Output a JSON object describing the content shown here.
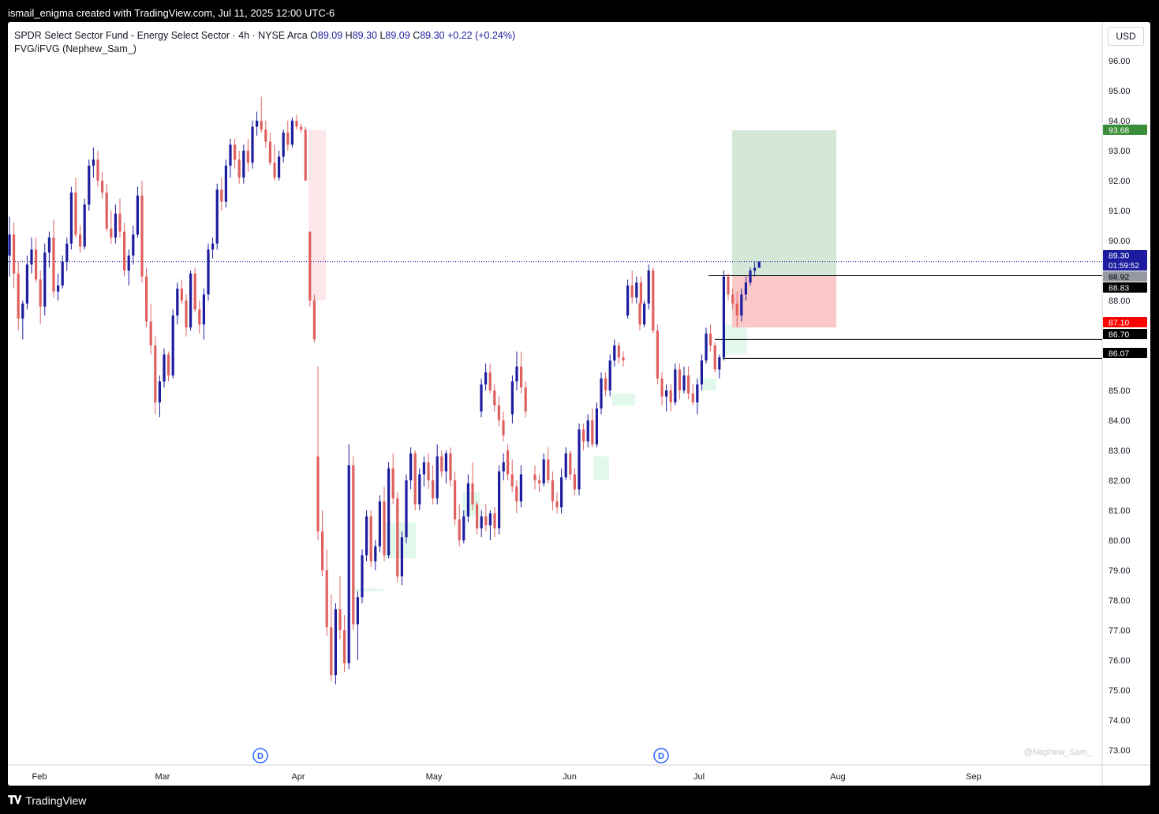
{
  "header": {
    "created_text": "ismail_enigma created with TradingView.com, Jul 11, 2025 12:00 UTC-6"
  },
  "legend": {
    "symbol": "SPDR Select Sector Fund - Energy Select Sector · 4h · NYSE Arca",
    "open_label": "O",
    "open": "89.09",
    "high_label": "H",
    "high": "89.30",
    "low_label": "L",
    "low": "89.09",
    "close_label": "C",
    "close": "89.30",
    "change": "+0.22 (+0.24%)",
    "indicator": "FVG/iFVG (Nephew_Sam_)"
  },
  "currency": "USD",
  "watermark": "@Nephew_Sam_",
  "footer": {
    "brand": "TradingView"
  },
  "colors": {
    "up": "#1c1c9e",
    "down": "#e06060",
    "target_zone": "#d4e8d8",
    "stop_zone": "#fbc8c8",
    "fvg_bull": "#def7e8",
    "fvg_bear": "#fde3e8",
    "price_tag_current": "#1c1c9e",
    "price_tag_target": "#3a8e3a",
    "price_tag_stop": "#ff0000"
  },
  "chart_data": {
    "type": "candlestick",
    "ylim": [
      72.5,
      96.8
    ],
    "y_ticks": [
      "96.00",
      "95.00",
      "94.00",
      "93.00",
      "92.00",
      "91.00",
      "90.00",
      "88.00",
      "85.00",
      "84.00",
      "83.00",
      "82.00",
      "81.00",
      "80.00",
      "79.00",
      "78.00",
      "77.00",
      "76.00",
      "75.00",
      "74.00",
      "73.00"
    ],
    "x_ticks": [
      "Feb",
      "Mar",
      "Apr",
      "May",
      "Jun",
      "Jul",
      "Aug",
      "Sep"
    ],
    "dividend_markers": [
      {
        "label": "D",
        "month": "Apr"
      },
      {
        "label": "D",
        "month": "Jun"
      }
    ],
    "price_tags": [
      {
        "label": "93.68",
        "role": "target"
      },
      {
        "label": "89.30",
        "sub": "01:59:52",
        "role": "current"
      },
      {
        "label": "88.92",
        "role": "gray"
      },
      {
        "label": "88.83",
        "role": "dark"
      },
      {
        "label": "87.10",
        "role": "stop"
      },
      {
        "label": "86.70",
        "role": "dark"
      },
      {
        "label": "86.07",
        "role": "dark"
      }
    ],
    "horizontal_lines": [
      88.83,
      86.7,
      86.07
    ],
    "position": {
      "entry": 88.83,
      "target": 93.68,
      "stop": 87.1
    },
    "current_price": 89.3,
    "candles": [
      [
        89.5,
        90.8,
        88.8,
        90.2
      ],
      [
        90.2,
        90.6,
        88.4,
        88.9
      ],
      [
        88.9,
        89.3,
        87.0,
        87.4
      ],
      [
        87.4,
        88.0,
        86.7,
        87.9
      ],
      [
        87.9,
        89.5,
        87.7,
        89.2
      ],
      [
        89.2,
        90.1,
        88.9,
        89.7
      ],
      [
        89.7,
        90.1,
        88.6,
        88.7
      ],
      [
        88.7,
        89.0,
        87.2,
        87.8
      ],
      [
        87.8,
        89.9,
        87.5,
        89.6
      ],
      [
        89.6,
        90.3,
        89.1,
        90.1
      ],
      [
        90.1,
        90.7,
        88.1,
        88.3
      ],
      [
        88.3,
        88.9,
        88.0,
        88.5
      ],
      [
        88.5,
        89.5,
        88.4,
        89.3
      ],
      [
        89.3,
        90.1,
        89.0,
        89.9
      ],
      [
        89.9,
        91.8,
        89.7,
        91.6
      ],
      [
        91.6,
        92.1,
        90.1,
        90.2
      ],
      [
        90.2,
        90.5,
        89.6,
        89.8
      ],
      [
        89.8,
        91.4,
        89.7,
        91.2
      ],
      [
        91.2,
        92.7,
        91.0,
        92.5
      ],
      [
        92.5,
        93.1,
        92.1,
        92.7
      ],
      [
        92.7,
        93.0,
        91.8,
        92.0
      ],
      [
        92.0,
        92.3,
        91.4,
        91.6
      ],
      [
        91.6,
        91.9,
        90.3,
        90.4
      ],
      [
        90.4,
        91.0,
        89.9,
        90.1
      ],
      [
        90.1,
        91.2,
        89.9,
        90.9
      ],
      [
        90.9,
        91.4,
        90.1,
        90.3
      ],
      [
        90.3,
        90.6,
        88.8,
        89.0
      ],
      [
        89.0,
        89.7,
        88.5,
        89.5
      ],
      [
        89.5,
        90.5,
        89.2,
        90.2
      ],
      [
        90.2,
        91.8,
        90.1,
        91.5
      ],
      [
        91.5,
        92.0,
        88.6,
        88.8
      ],
      [
        88.8,
        89.1,
        87.1,
        87.3
      ],
      [
        87.3,
        87.9,
        86.2,
        86.5
      ],
      [
        86.5,
        86.8,
        84.2,
        84.6
      ],
      [
        84.6,
        85.5,
        84.1,
        85.3
      ],
      [
        85.3,
        86.4,
        85.1,
        86.2
      ],
      [
        86.2,
        86.3,
        85.3,
        85.5
      ],
      [
        85.5,
        87.7,
        85.4,
        87.5
      ],
      [
        87.5,
        88.6,
        87.2,
        88.4
      ],
      [
        88.4,
        88.7,
        87.9,
        88.0
      ],
      [
        88.0,
        88.2,
        86.8,
        87.1
      ],
      [
        87.1,
        89.0,
        87.0,
        88.9
      ],
      [
        88.9,
        89.1,
        87.6,
        87.7
      ],
      [
        87.7,
        88.0,
        86.9,
        87.2
      ],
      [
        87.2,
        88.4,
        86.7,
        88.2
      ],
      [
        88.2,
        89.9,
        88.0,
        89.7
      ],
      [
        89.7,
        90.1,
        89.4,
        89.9
      ],
      [
        89.9,
        91.9,
        89.7,
        91.7
      ],
      [
        91.7,
        92.1,
        91.0,
        91.3
      ],
      [
        91.3,
        92.7,
        91.1,
        92.5
      ],
      [
        92.5,
        93.4,
        92.1,
        93.2
      ],
      [
        93.2,
        93.4,
        92.4,
        92.7
      ],
      [
        92.7,
        93.0,
        91.9,
        92.1
      ],
      [
        92.1,
        93.2,
        91.9,
        93.0
      ],
      [
        93.0,
        93.4,
        92.3,
        92.6
      ],
      [
        92.6,
        94.0,
        92.4,
        93.8
      ],
      [
        93.8,
        94.3,
        93.5,
        94.0
      ],
      [
        94.0,
        94.8,
        93.6,
        93.7
      ],
      [
        93.7,
        94.0,
        93.1,
        93.3
      ],
      [
        93.3,
        93.6,
        92.5,
        92.6
      ],
      [
        92.6,
        93.2,
        92.0,
        92.1
      ],
      [
        92.1,
        93.0,
        92.0,
        92.8
      ],
      [
        92.8,
        93.7,
        92.6,
        93.6
      ],
      [
        93.6,
        94.0,
        93.0,
        93.2
      ],
      [
        93.2,
        94.1,
        93.1,
        94.0
      ],
      [
        94.0,
        94.2,
        93.7,
        93.8
      ],
      [
        93.8,
        93.9,
        93.6,
        93.7
      ],
      [
        93.7,
        93.8,
        92.0,
        92.0
      ],
      [
        90.3,
        90.3,
        87.8,
        88.0
      ],
      [
        88.0,
        88.2,
        86.6,
        86.7
      ],
      [
        82.8,
        85.8,
        80.0,
        80.3
      ],
      [
        80.3,
        81.0,
        78.8,
        79.0
      ],
      [
        79.0,
        79.7,
        76.8,
        77.1
      ],
      [
        77.1,
        78.2,
        75.3,
        75.5
      ],
      [
        75.5,
        77.9,
        75.2,
        77.7
      ],
      [
        77.7,
        78.8,
        76.7,
        77.0
      ],
      [
        77.0,
        77.5,
        75.6,
        75.9
      ],
      [
        75.9,
        83.2,
        75.7,
        82.5
      ],
      [
        82.5,
        82.8,
        77.0,
        77.2
      ],
      [
        77.2,
        78.3,
        76.0,
        78.1
      ],
      [
        78.1,
        79.7,
        77.9,
        79.5
      ],
      [
        79.5,
        81.0,
        79.3,
        80.8
      ],
      [
        80.8,
        81.0,
        79.1,
        79.3
      ],
      [
        79.3,
        80.0,
        79.0,
        79.8
      ],
      [
        79.8,
        81.5,
        79.6,
        81.3
      ],
      [
        81.3,
        81.8,
        79.3,
        79.5
      ],
      [
        79.5,
        82.6,
        79.4,
        82.4
      ],
      [
        82.4,
        82.9,
        81.2,
        81.4
      ],
      [
        81.4,
        81.6,
        78.6,
        78.8
      ],
      [
        78.8,
        80.3,
        78.5,
        80.1
      ],
      [
        80.1,
        82.2,
        79.9,
        82.0
      ],
      [
        82.0,
        83.1,
        81.7,
        82.9
      ],
      [
        82.9,
        83.0,
        81.0,
        81.2
      ],
      [
        81.2,
        82.4,
        81.0,
        82.2
      ],
      [
        82.2,
        82.8,
        81.8,
        82.6
      ],
      [
        82.6,
        82.9,
        81.7,
        82.0
      ],
      [
        82.0,
        82.5,
        81.2,
        81.4
      ],
      [
        81.4,
        83.2,
        81.2,
        82.8
      ],
      [
        82.8,
        83.0,
        82.1,
        82.3
      ],
      [
        82.3,
        83.0,
        81.9,
        82.9
      ],
      [
        82.9,
        83.1,
        81.8,
        82.0
      ],
      [
        82.0,
        82.3,
        80.5,
        80.7
      ],
      [
        80.7,
        81.2,
        79.8,
        80.0
      ],
      [
        80.0,
        81.0,
        79.9,
        80.8
      ],
      [
        80.8,
        82.2,
        80.6,
        81.9
      ],
      [
        81.9,
        82.6,
        81.0,
        81.2
      ],
      [
        81.2,
        81.3,
        80.2,
        80.4
      ],
      [
        80.4,
        81.0,
        80.1,
        80.8
      ],
      [
        80.8,
        81.2,
        80.3,
        80.5
      ],
      [
        80.5,
        81.0,
        80.0,
        80.9
      ],
      [
        80.9,
        81.1,
        80.1,
        80.4
      ],
      [
        80.4,
        82.5,
        80.2,
        82.3
      ],
      [
        82.3,
        82.9,
        82.0,
        82.6
      ],
      [
        82.6,
        82.8,
        82.2,
        82.5
      ],
      [
        84.2,
        85.5,
        83.9,
        85.3
      ],
      [
        85.3,
        86.3,
        85.0,
        85.8
      ],
      [
        85.8,
        86.3,
        84.9,
        85.1
      ],
      [
        85.1,
        85.3,
        84.1,
        84.3
      ],
      [
        84.3,
        85.4,
        84.1,
        85.2
      ],
      [
        85.2,
        85.9,
        85.0,
        85.6
      ],
      [
        85.6,
        85.9,
        84.9,
        85.0
      ],
      [
        85.0,
        85.2,
        84.3,
        84.5
      ],
      [
        84.5,
        84.8,
        83.8,
        84.0
      ],
      [
        84.0,
        84.3,
        83.3,
        83.5
      ],
      [
        83.0,
        83.2,
        82.0,
        82.2
      ],
      [
        82.2,
        82.7,
        81.6,
        81.8
      ],
      [
        81.8,
        82.0,
        80.9,
        81.3
      ],
      [
        81.3,
        82.5,
        81.1,
        82.2
      ],
      [
        82.2,
        82.5,
        81.7,
        82.0
      ],
      [
        82.0,
        82.2,
        81.6,
        81.9
      ],
      [
        81.9,
        82.9,
        81.8,
        82.7
      ],
      [
        82.7,
        83.1,
        81.9,
        82.0
      ],
      [
        82.0,
        82.3,
        81.0,
        81.3
      ],
      [
        81.3,
        81.6,
        80.9,
        81.1
      ],
      [
        81.1,
        82.4,
        80.9,
        82.1
      ],
      [
        82.1,
        83.1,
        82.0,
        82.9
      ],
      [
        82.9,
        83.0,
        82.0,
        82.2
      ],
      [
        82.2,
        82.4,
        81.5,
        81.7
      ],
      [
        81.7,
        83.9,
        81.5,
        83.7
      ],
      [
        83.7,
        83.9,
        83.0,
        83.3
      ],
      [
        83.3,
        84.2,
        83.1,
        84.0
      ],
      [
        84.0,
        84.4,
        83.1,
        83.2
      ],
      [
        83.2,
        84.6,
        83.1,
        84.4
      ],
      [
        84.4,
        85.6,
        84.2,
        85.4
      ],
      [
        85.4,
        85.6,
        84.8,
        85.0
      ],
      [
        85.0,
        86.2,
        84.8,
        86.0
      ],
      [
        86.0,
        86.7,
        85.8,
        86.5
      ],
      [
        86.5,
        86.6,
        85.9,
        86.1
      ],
      [
        86.1,
        86.3,
        85.8,
        86.0
      ],
      [
        87.5,
        88.7,
        87.4,
        88.5
      ],
      [
        88.5,
        89.0,
        87.9,
        88.1
      ],
      [
        88.1,
        88.8,
        87.9,
        88.6
      ],
      [
        88.6,
        88.8,
        87.8,
        87.9
      ],
      [
        87.9,
        88.0,
        87.0,
        87.2
      ],
      [
        87.2,
        88.0,
        87.1,
        87.9
      ],
      [
        87.9,
        89.2,
        87.7,
        89.0
      ],
      [
        89.0,
        89.1,
        86.9,
        87.0
      ],
      [
        87.0,
        87.2,
        85.2,
        85.4
      ],
      [
        85.4,
        85.6,
        84.5,
        84.8
      ],
      [
        84.8,
        85.2,
        84.3,
        85.0
      ],
      [
        85.0,
        85.2,
        84.3,
        84.6
      ],
      [
        84.6,
        85.9,
        84.5,
        85.7
      ],
      [
        85.7,
        85.9,
        84.7,
        85.0
      ],
      [
        85.0,
        85.8,
        84.9,
        85.5
      ],
      [
        85.5,
        85.8,
        84.7,
        84.9
      ],
      [
        84.9,
        85.2,
        84.5,
        84.6
      ],
      [
        84.6,
        85.4,
        84.2,
        85.2
      ],
      [
        85.2,
        86.2,
        85.0,
        86.0
      ],
      [
        86.0,
        87.1,
        85.9,
        86.9
      ],
      [
        86.9,
        87.2,
        86.3,
        86.5
      ],
      [
        86.5,
        86.6,
        85.6,
        85.7
      ],
      [
        85.7,
        86.2,
        85.4,
        86.1
      ],
      [
        86.1,
        89.0,
        86.0,
        88.8
      ],
      [
        88.8,
        88.9,
        88.0,
        88.2
      ],
      [
        88.2,
        88.4,
        87.7,
        87.9
      ],
      [
        87.9,
        88.3,
        87.1,
        87.5
      ],
      [
        87.5,
        88.4,
        87.3,
        88.2
      ],
      [
        88.2,
        88.8,
        88.0,
        88.6
      ],
      [
        88.6,
        89.1,
        88.5,
        89.0
      ],
      [
        89.0,
        89.3,
        88.8,
        89.09
      ],
      [
        89.09,
        89.3,
        89.09,
        89.3
      ]
    ]
  }
}
